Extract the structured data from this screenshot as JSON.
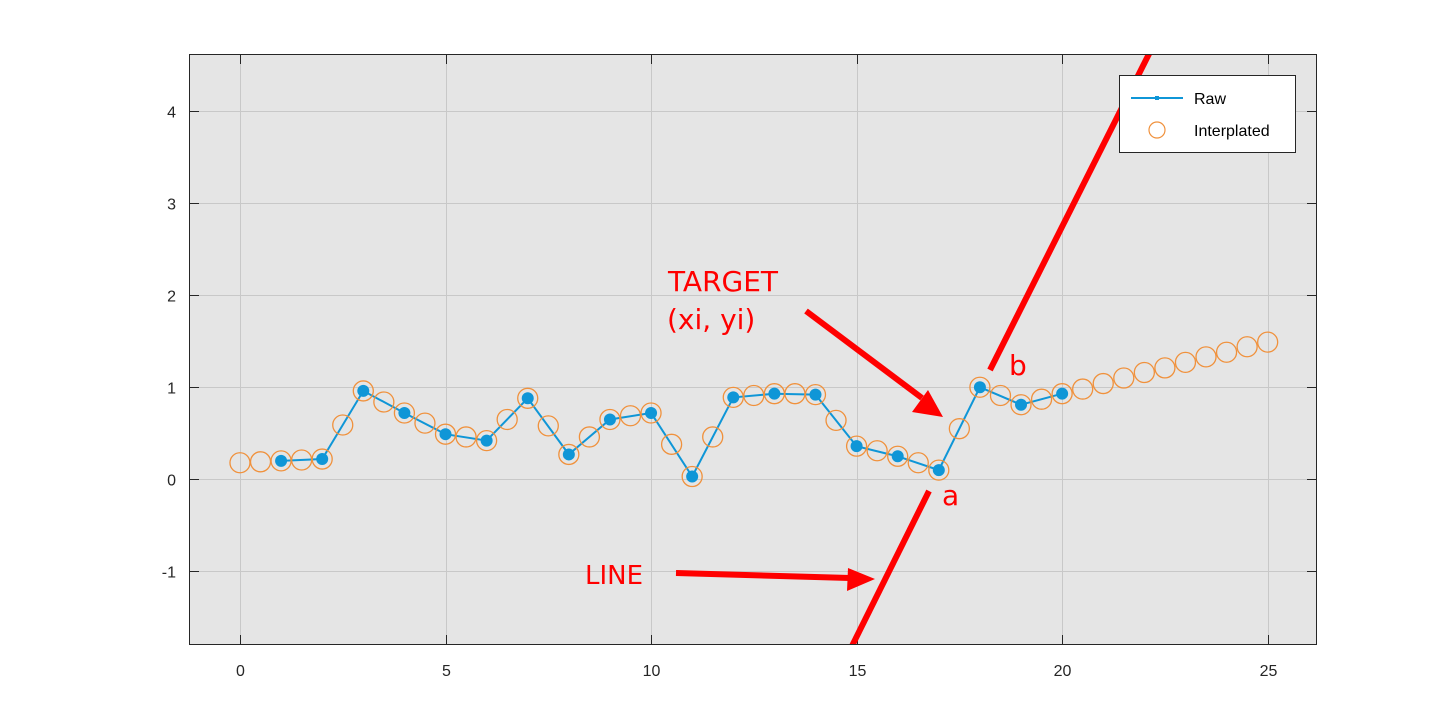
{
  "chart_data": {
    "type": "line",
    "title": "",
    "xlabel": "",
    "ylabel": "",
    "xlim": [
      -1.24,
      26.2
    ],
    "ylim": [
      -1.8,
      4.62
    ],
    "grid": true,
    "background": "#e5e5e5",
    "legend_position": "northeast",
    "x_ticks": [
      0,
      5,
      10,
      15,
      20,
      25
    ],
    "y_ticks": [
      -1,
      0,
      1,
      2,
      3,
      4
    ],
    "series": [
      {
        "name": "Raw",
        "style": "line-with-filled-markers",
        "color": "#0f96d7",
        "x": [
          1,
          2,
          3,
          4,
          5,
          6,
          7,
          8,
          9,
          10,
          11,
          12,
          13,
          14,
          15,
          16,
          17,
          18,
          19,
          20
        ],
        "y": [
          0.2,
          0.22,
          0.96,
          0.72,
          0.49,
          0.42,
          0.88,
          0.27,
          0.65,
          0.72,
          0.03,
          0.89,
          0.93,
          0.92,
          0.36,
          0.25,
          0.1,
          1.0,
          0.81,
          0.93
        ]
      },
      {
        "name": "Interplated",
        "style": "open-circle-markers",
        "color": "#f0913c",
        "x": [
          0,
          0.5,
          1,
          1.5,
          2,
          2.5,
          3,
          3.5,
          4,
          4.5,
          5,
          5.5,
          6,
          6.5,
          7,
          7.5,
          8,
          8.5,
          9,
          9.5,
          10,
          10.5,
          11,
          11.5,
          12,
          12.5,
          13,
          13.5,
          14,
          14.5,
          15,
          15.5,
          16,
          16.5,
          17,
          17.5,
          18,
          18.5,
          19,
          19.5,
          20,
          20.5,
          21,
          21.5,
          22,
          22.5,
          23,
          23.5,
          24,
          24.5,
          25
        ],
        "y": [
          0.18,
          0.19,
          0.2,
          0.21,
          0.22,
          0.59,
          0.96,
          0.84,
          0.72,
          0.61,
          0.49,
          0.46,
          0.42,
          0.65,
          0.88,
          0.58,
          0.27,
          0.46,
          0.65,
          0.69,
          0.72,
          0.38,
          0.03,
          0.46,
          0.89,
          0.91,
          0.93,
          0.93,
          0.92,
          0.64,
          0.36,
          0.31,
          0.25,
          0.18,
          0.1,
          0.55,
          1.0,
          0.91,
          0.81,
          0.87,
          0.93,
          0.98,
          1.04,
          1.1,
          1.16,
          1.21,
          1.27,
          1.33,
          1.38,
          1.44,
          1.49
        ]
      }
    ],
    "annotations": [
      {
        "text": "TARGET",
        "color": "#ff0000"
      },
      {
        "text": "(xi, yi)",
        "color": "#ff0000"
      },
      {
        "text": "LINE",
        "color": "#ff0000"
      },
      {
        "text": "a",
        "color": "#ff0000"
      },
      {
        "text": "b",
        "color": "#ff0000"
      }
    ]
  },
  "legend": {
    "raw_label": "Raw",
    "interp_label": "Interplated"
  },
  "annotations": {
    "target_line1": "TARGET",
    "target_line2": "(xi, yi)",
    "line_label": "LINE",
    "point_a": "a",
    "point_b": "b"
  },
  "axes": {
    "x_tick_labels": [
      "0",
      "5",
      "10",
      "15",
      "20",
      "25"
    ],
    "y_tick_labels": [
      "-1",
      "0",
      "1",
      "2",
      "3",
      "4"
    ]
  }
}
